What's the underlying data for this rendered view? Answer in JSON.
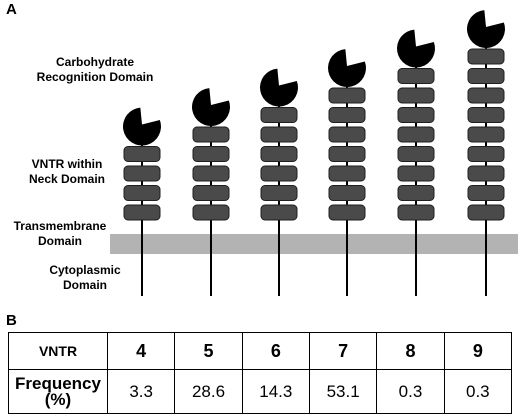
{
  "panel_a": {
    "label": "A",
    "labels": {
      "crd_line1": "Carbohydrate",
      "crd_line2": "Recognition Domain",
      "vntr_line1": "VNTR within",
      "vntr_line2": "Neck Domain",
      "tm_line1": "Transmembrane",
      "tm_line2": "Domain",
      "cyto_line1": "Cytoplasmic",
      "cyto_line2": "Domain"
    },
    "receptor_repeat_counts": [
      4,
      5,
      6,
      7,
      8,
      9
    ],
    "colors": {
      "membrane": "#b3b3b3",
      "repeat_unit": "#4a4a4a",
      "crd": "#000000",
      "stalk": "#000000"
    }
  },
  "panel_b": {
    "label": "B",
    "row_header_vntr": "VNTR",
    "row_header_freq_line1": "Frequency",
    "row_header_freq_line2": "(%)",
    "vntr": [
      "4",
      "5",
      "6",
      "7",
      "8",
      "9"
    ],
    "frequency": [
      "3.3",
      "28.6",
      "14.3",
      "53.1",
      "0.3",
      "0.3"
    ]
  }
}
